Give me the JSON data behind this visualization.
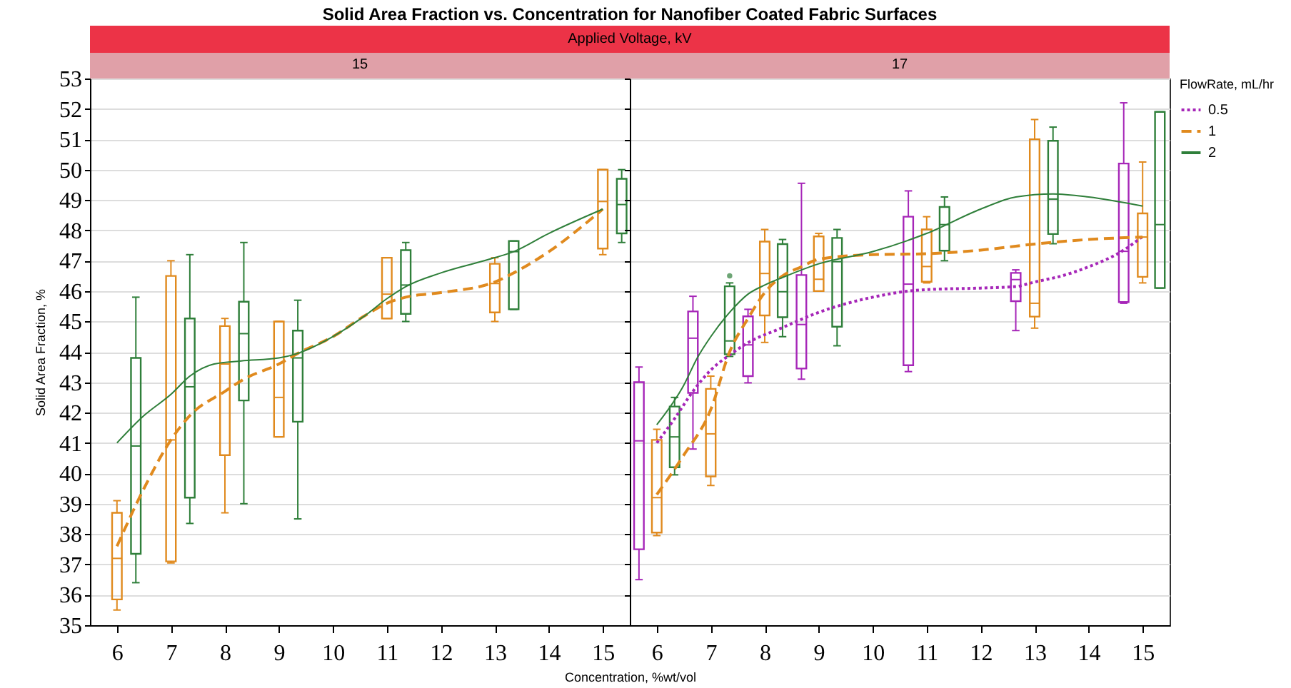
{
  "chart_data": [
    {
      "type": "box",
      "title": "Solid Area Fraction vs. Concentration for Nanofiber Coated Fabric Surfaces",
      "subtitle": "Applied Voltage, kV",
      "annotations": [
        "15"
      ],
      "xlabel": "Concentration, %wt/vol",
      "legend": "right",
      "ylabel": "Solid Area Fraction, %",
      "xlim": [
        5.5,
        15.5
      ],
      "xticks": [
        6,
        7,
        8,
        9,
        10,
        11,
        12,
        13,
        14,
        15
      ],
      "ylim": [
        35,
        53
      ],
      "yticks": [
        35,
        36,
        37,
        38,
        39,
        40,
        41,
        42,
        43,
        44,
        45,
        46,
        47,
        48,
        49,
        50,
        51,
        52,
        53
      ],
      "grid": "y",
      "series": [
        {
          "type": "box",
          "color": "#e08a1e",
          "x": [
            6,
            7,
            8,
            9,
            11,
            13,
            15
          ],
          "boxes": [
            {
              "low": 35.5,
              "q1": 35.85,
              "median": 37.2,
              "q3": 38.7,
              "high": 39.1
            },
            {
              "low": 37.05,
              "q1": 37.1,
              "median": 41.1,
              "q3": 46.5,
              "high": 47.0
            },
            {
              "low": 38.7,
              "q1": 40.6,
              "median": 43.6,
              "q3": 44.85,
              "high": 45.1
            },
            {
              "low": 41.2,
              "q1": 41.2,
              "median": 42.5,
              "q3": 45.0,
              "high": 45.0
            },
            {
              "low": 45.1,
              "q1": 45.1,
              "median": 45.9,
              "q3": 47.1,
              "high": 47.1
            },
            {
              "low": 45.0,
              "q1": 45.3,
              "median": 46.25,
              "q3": 46.9,
              "high": 47.1
            },
            {
              "low": 47.2,
              "q1": 47.4,
              "median": 48.95,
              "q3": 50.0,
              "high": 50.0
            }
          ]
        },
        {
          "type": "box",
          "color": "#2f7f3a",
          "x": [
            6.35,
            7.35,
            8.35,
            9.35,
            11.35,
            13.35,
            15.35
          ],
          "boxes": [
            {
              "low": 36.4,
              "q1": 37.35,
              "median": 40.9,
              "q3": 43.8,
              "high": 45.8
            },
            {
              "low": 38.35,
              "q1": 39.2,
              "median": 42.85,
              "q3": 45.1,
              "high": 47.2
            },
            {
              "low": 39.0,
              "q1": 42.4,
              "median": 44.6,
              "q3": 45.65,
              "high": 47.6
            },
            {
              "low": 38.5,
              "q1": 41.7,
              "median": 43.8,
              "q3": 44.7,
              "high": 45.7
            },
            {
              "low": 45.0,
              "q1": 45.25,
              "median": 46.2,
              "q3": 47.35,
              "high": 47.6
            },
            {
              "low": 45.4,
              "q1": 45.4,
              "median": 47.3,
              "q3": 47.65,
              "high": 47.65
            },
            {
              "low": 47.6,
              "q1": 47.9,
              "median": 48.85,
              "q3": 49.7,
              "high": 50.0
            }
          ]
        },
        {
          "type": "line",
          "name": "1",
          "color": "#e08a1e",
          "line_style": "dashed",
          "x": [
            6,
            6.5,
            7,
            7.35,
            8,
            8.35,
            9,
            9.35,
            10,
            10.6,
            11,
            11.35,
            12,
            13,
            13.35,
            14,
            15
          ],
          "values": [
            37.6,
            39.5,
            41.1,
            41.9,
            42.7,
            43.1,
            43.6,
            43.95,
            44.5,
            45.2,
            45.6,
            45.8,
            45.95,
            46.3,
            46.6,
            47.3,
            48.7
          ]
        },
        {
          "type": "line",
          "name": "2",
          "color": "#2f7f3a",
          "line_style": "solid",
          "x": [
            6,
            6.5,
            7,
            7.35,
            7.8,
            8.3,
            9,
            9.35,
            10,
            10.6,
            11,
            11.35,
            12,
            13,
            13.35,
            14,
            15
          ],
          "values": [
            41.0,
            41.9,
            42.6,
            43.2,
            43.6,
            43.7,
            43.8,
            43.95,
            44.5,
            45.2,
            45.75,
            46.15,
            46.6,
            47.1,
            47.3,
            47.9,
            48.7
          ]
        }
      ]
    },
    {
      "type": "box",
      "annotations": [
        "17"
      ],
      "legend": "right",
      "legend_title": "FlowRate, mL/hr",
      "tick_labels": "x",
      "xlim": [
        5.5,
        15.5
      ],
      "xticks": [
        6,
        7,
        8,
        9,
        10,
        11,
        12,
        13,
        14,
        15
      ],
      "ylim": [
        35,
        53
      ],
      "yticks": [
        35,
        36,
        37,
        38,
        39,
        40,
        41,
        42,
        43,
        44,
        45,
        46,
        47,
        48,
        49,
        50,
        51,
        52,
        53
      ],
      "grid": "y",
      "series": [
        {
          "type": "box",
          "color": "#a626b8",
          "x": [
            5.67,
            6.67,
            7.69,
            8.68,
            10.66,
            12.65,
            14.65
          ],
          "boxes": [
            {
              "low": 36.5,
              "q1": 37.5,
              "median": 41.07,
              "q3": 43.0,
              "high": 43.5
            },
            {
              "low": 40.8,
              "q1": 42.65,
              "median": 44.45,
              "q3": 45.33,
              "high": 45.83
            },
            {
              "low": 42.98,
              "q1": 43.2,
              "median": 44.23,
              "q3": 45.17,
              "high": 45.4
            },
            {
              "low": 43.1,
              "q1": 43.45,
              "median": 44.9,
              "q3": 46.53,
              "high": 49.55
            },
            {
              "low": 43.35,
              "q1": 43.56,
              "median": 46.23,
              "q3": 48.45,
              "high": 49.3
            },
            {
              "low": 44.7,
              "q1": 45.67,
              "median": 46.38,
              "q3": 46.6,
              "high": 46.7
            },
            {
              "low": 45.6,
              "q1": 45.64,
              "median": 47.31,
              "q3": 50.2,
              "high": 52.2
            }
          ]
        },
        {
          "type": "box",
          "color": "#e08a1e",
          "x": [
            6,
            7,
            8,
            9,
            11,
            13,
            15
          ],
          "boxes": [
            {
              "low": 37.95,
              "q1": 38.05,
              "median": 39.2,
              "q3": 41.1,
              "high": 41.45
            },
            {
              "low": 39.6,
              "q1": 39.9,
              "median": 41.3,
              "q3": 42.78,
              "high": 43.2
            },
            {
              "low": 44.31,
              "q1": 45.2,
              "median": 46.58,
              "q3": 47.63,
              "high": 48.03
            },
            {
              "low": 46.0,
              "q1": 46.0,
              "median": 46.39,
              "q3": 47.8,
              "high": 47.9
            },
            {
              "low": 46.27,
              "q1": 46.31,
              "median": 46.81,
              "q3": 48.03,
              "high": 48.45
            },
            {
              "low": 44.78,
              "q1": 45.16,
              "median": 45.6,
              "q3": 51.0,
              "high": 51.65
            },
            {
              "low": 46.27,
              "q1": 46.47,
              "median": 47.78,
              "q3": 48.56,
              "high": 50.25
            }
          ]
        },
        {
          "type": "box",
          "color": "#2f7f3a",
          "x": [
            6.33,
            7.35,
            8.33,
            9.34,
            11.33,
            13.34,
            15.32
          ],
          "boxes": [
            {
              "low": 39.95,
              "q1": 40.2,
              "median": 41.2,
              "q3": 42.2,
              "high": 42.5
            },
            {
              "low": 43.85,
              "q1": 43.92,
              "median": 44.36,
              "q3": 46.16,
              "high": 46.27,
              "outliers": [
                46.5
              ]
            },
            {
              "low": 44.5,
              "q1": 45.14,
              "median": 45.98,
              "q3": 47.55,
              "high": 47.7
            },
            {
              "low": 44.2,
              "q1": 44.83,
              "median": 46.97,
              "q3": 47.75,
              "high": 48.03
            },
            {
              "low": 47.0,
              "q1": 47.33,
              "median": 48.19,
              "q3": 48.77,
              "high": 49.1
            },
            {
              "low": 47.56,
              "q1": 47.88,
              "median": 49.03,
              "q3": 50.95,
              "high": 51.4
            },
            {
              "low": 46.1,
              "q1": 46.1,
              "median": 48.19,
              "q3": 51.9,
              "high": 51.9
            }
          ]
        },
        {
          "type": "line",
          "name": "0.5",
          "color": "#a626b8",
          "line_style": "dotted",
          "x": [
            6,
            6.33,
            6.67,
            7,
            7.35,
            7.69,
            8.33,
            9,
            10,
            10.66,
            11,
            12,
            12.65,
            13,
            13.5,
            14,
            14.65,
            15
          ],
          "values": [
            41.0,
            41.8,
            42.7,
            43.4,
            43.9,
            44.3,
            44.8,
            45.3,
            45.8,
            46.0,
            46.05,
            46.1,
            46.15,
            46.3,
            46.5,
            46.8,
            47.35,
            47.8
          ]
        },
        {
          "type": "line",
          "name": "1",
          "color": "#e08a1e",
          "line_style": "dashed",
          "x": [
            6,
            6.5,
            7,
            7.35,
            7.69,
            8,
            8.33,
            8.68,
            9,
            10,
            11,
            12,
            13,
            14,
            15
          ],
          "values": [
            39.3,
            40.6,
            42.1,
            44.0,
            45.1,
            45.95,
            46.5,
            46.8,
            47.05,
            47.2,
            47.23,
            47.35,
            47.55,
            47.7,
            47.78
          ]
        },
        {
          "type": "line",
          "name": "2",
          "color": "#2f7f3a",
          "line_style": "solid",
          "x": [
            6,
            6.5,
            6.75,
            7,
            7.35,
            7.69,
            8,
            8.33,
            9,
            10,
            11,
            12,
            12.65,
            13.34,
            14,
            15
          ],
          "values": [
            41.6,
            42.9,
            43.8,
            44.5,
            45.3,
            45.9,
            46.2,
            46.45,
            46.9,
            47.3,
            47.9,
            48.7,
            49.1,
            49.2,
            49.1,
            48.8
          ]
        }
      ]
    }
  ]
}
